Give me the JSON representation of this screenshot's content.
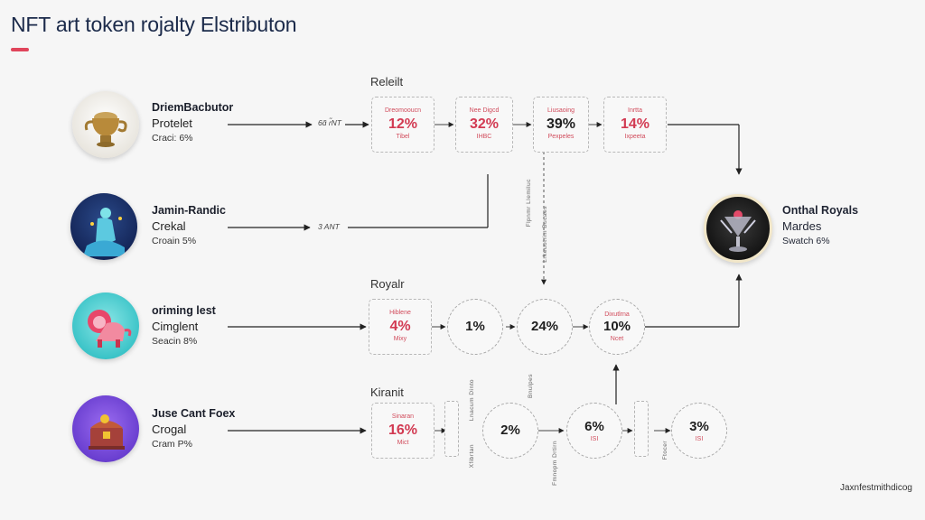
{
  "title": "NFT art token rojalty Elstributon",
  "colors": {
    "accent": "#e0455b",
    "title": "#1b2a4a"
  },
  "creators": [
    {
      "name": "DriemBacbutor",
      "role": "Protelet",
      "share": "Craci: 6%",
      "edge_label": "6ɑ̃ ɾ̃NT",
      "icon": "golden-teapot-icon"
    },
    {
      "name": "Jamin-Randic",
      "role": "Crekal",
      "share": "Croain 5%",
      "edge_label": "3 ANT",
      "icon": "blue-figure-icon"
    },
    {
      "name": "oriming lest",
      "role": "Cimglent",
      "share": "Seacin 8%",
      "edge_label": "",
      "icon": "pink-lion-icon"
    },
    {
      "name": "Juse Cant Foex",
      "role": "Crogal",
      "share": "Cram P%",
      "edge_label": "",
      "icon": "treasure-chest-icon"
    }
  ],
  "sections": {
    "top": "Releilt",
    "middle": "Royalr",
    "bottom": "Kiranit"
  },
  "top_row": [
    {
      "small_top": "Dreomooucn",
      "pct": "12%",
      "small_bottom": "Tibel"
    },
    {
      "small_top": "Nee Digcd",
      "pct": "32%",
      "small_bottom": "IHBC"
    },
    {
      "small_top": "Liusaoing",
      "pct": "39%",
      "small_bottom": "Pexpeles"
    },
    {
      "small_top": "Inrtta",
      "pct": "14%",
      "small_bottom": "Ixpeeta"
    }
  ],
  "middle_row": [
    {
      "small_top": "Hiblene",
      "pct": "4%",
      "small_bottom": "Mixy"
    },
    {
      "small_top": "",
      "pct": "1%",
      "small_bottom": ""
    },
    {
      "small_top": "",
      "pct": "24%",
      "small_bottom": ""
    },
    {
      "small_top": "Dixutlrna",
      "pct": "10%",
      "small_bottom": "Ncet"
    }
  ],
  "bottom_row": [
    {
      "small_top": "Sinaran",
      "pct": "16%",
      "small_bottom": "Mict"
    },
    {
      "small_top": "",
      "pct": "2%",
      "small_bottom": ""
    },
    {
      "small_top": "",
      "pct": "6%",
      "small_bottom": "ISI"
    },
    {
      "small_top": "",
      "pct": "3%",
      "small_bottom": "ISI"
    }
  ],
  "vertical_labels": [
    "Flpnmr Llemiluc",
    "Lrkeuotrim Bucaes",
    "Lnacum Dinto",
    "Xfibrtan",
    "Bnulpes",
    "Fmnopm Drtirn",
    "Ftocer"
  ],
  "receiver": {
    "name": "Onthal Royals",
    "role": "Mardes",
    "share": "Swatch 6%",
    "icon": "crystal-chalice-icon"
  },
  "footer": "Jaxnfestmithdicog"
}
